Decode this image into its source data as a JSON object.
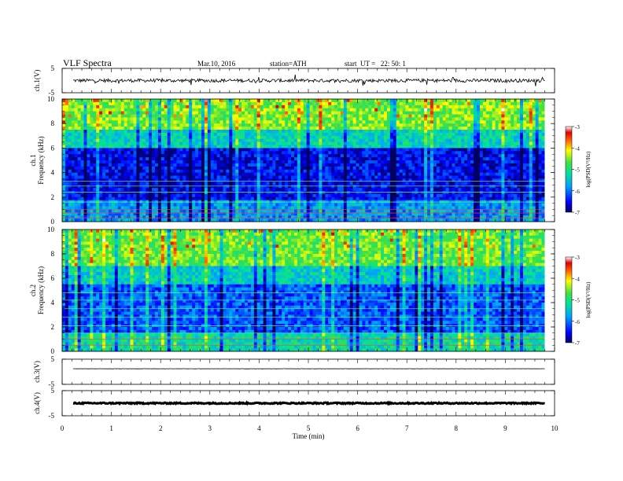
{
  "header": {
    "title": "VLF Spectra",
    "date": "Mar.10, 2016",
    "station": "station=ATH",
    "start": "start  UT =   22: 50: 1"
  },
  "chart_data": [
    {
      "type": "line",
      "ylabel": "ch.1(V)",
      "ylim": [
        -5,
        5
      ],
      "yticks": [
        "5",
        "-5"
      ],
      "baseline": 0,
      "noise_amplitude": 0.7
    },
    {
      "type": "heatmap",
      "ylabel": "ch.1\nFrequency (kHz)",
      "ylim": [
        0,
        10
      ],
      "yticks": [
        "0",
        "2",
        "4",
        "6",
        "8",
        "10"
      ],
      "colorbar": {
        "label": "log(PSD(V²/Hz)",
        "range": [
          -7,
          -3
        ],
        "ticks": [
          "-3",
          "-4",
          "-5",
          "-6",
          "-7"
        ]
      }
    },
    {
      "type": "heatmap",
      "ylabel": "ch.2\nFrequency (kHz)",
      "ylim": [
        0,
        10
      ],
      "yticks": [
        "0",
        "2",
        "4",
        "6",
        "8",
        "10"
      ],
      "colorbar": {
        "label": "log(PSD(V²/Hz)",
        "range": [
          -7,
          -3
        ],
        "ticks": [
          "-3",
          "-4",
          "-5",
          "-6",
          "-7"
        ]
      }
    },
    {
      "type": "line",
      "ylabel": "ch.3(V)",
      "ylim": [
        -5,
        5
      ],
      "yticks": [
        "5",
        "-5"
      ],
      "baseline": 1.2,
      "noise_amplitude": 0.05
    },
    {
      "type": "line",
      "ylabel": "ch.4(V)",
      "ylim": [
        -5,
        5
      ],
      "yticks": [
        "5",
        "-5"
      ],
      "baseline": 0,
      "noise_amplitude": 0.25
    }
  ],
  "xaxis": {
    "label": "Time  (min)",
    "xlim": [
      0,
      10
    ],
    "ticks": [
      "0",
      "1",
      "2",
      "3",
      "4",
      "5",
      "6",
      "7",
      "8",
      "9",
      "10"
    ],
    "data_end": 9.8
  }
}
